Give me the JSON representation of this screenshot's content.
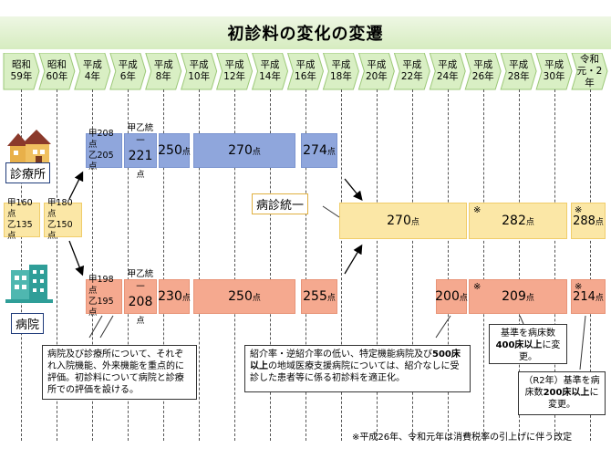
{
  "title": "初診料の変化の変遷",
  "eras": [
    {
      "l1": "昭和",
      "l2": "59年"
    },
    {
      "l1": "昭和",
      "l2": "60年"
    },
    {
      "l1": "平成",
      "l2": "4年"
    },
    {
      "l1": "平成",
      "l2": "6年"
    },
    {
      "l1": "平成",
      "l2": "8年"
    },
    {
      "l1": "平成",
      "l2": "10年"
    },
    {
      "l1": "平成",
      "l2": "12年"
    },
    {
      "l1": "平成",
      "l2": "14年"
    },
    {
      "l1": "平成",
      "l2": "16年"
    },
    {
      "l1": "平成",
      "l2": "18年"
    },
    {
      "l1": "平成",
      "l2": "20年"
    },
    {
      "l1": "平成",
      "l2": "22年"
    },
    {
      "l1": "平成",
      "l2": "24年"
    },
    {
      "l1": "平成",
      "l2": "26年"
    },
    {
      "l1": "平成",
      "l2": "28年"
    },
    {
      "l1": "平成",
      "l2": "30年"
    },
    {
      "l1": "令和",
      "l2": "元・2年"
    }
  ],
  "labels": {
    "clinic": "診療所",
    "hospital": "病院",
    "unified": "病診統一"
  },
  "shared": {
    "s59_a": "甲160点",
    "s59_b": "乙135点",
    "s60_a": "甲180点",
    "s60_b": "乙150点"
  },
  "clinic": {
    "h4_a": "甲208点",
    "h4_b": "乙205点",
    "h6_a": "甲乙統一",
    "h6_b": "221",
    "h8": "250",
    "h10": "270",
    "h16": "274"
  },
  "hospital": {
    "h4_a": "甲198点",
    "h4_b": "乙195点",
    "h6_a": "甲乙統一",
    "h6_b": "208",
    "h8": "230",
    "h10": "250",
    "h16": "255",
    "h24": "200",
    "h26": "209",
    "r1": "214"
  },
  "unified": {
    "h20": "270",
    "h26": "282",
    "r1": "288"
  },
  "unit": "点",
  "star": "※",
  "notes": {
    "n1": "病院及び診療所について、それぞれ入院機能、外来機能を重点的に評価。初診料について病院と診療所での評価を設ける。",
    "n2a": "紹介率・逆紹介率の低い、特定機能病院及び",
    "n2b": "500床以上",
    "n2c": "の地域医療支援病院については、紹介なしに受診した患者等に係る初診料を適正化。",
    "n3a": "基準を病床数",
    "n3b": "400床以上",
    "n3c": "に変更。",
    "n4a": "（R2年）基準を病床数",
    "n4b": "200床以上",
    "n4c": "に変更。",
    "footnote": "※平成26年、令和元年は消費税率の引上げに伴う改定"
  },
  "colors": {
    "clinic": "#8fa6dc",
    "unified": "#fbe7a6",
    "hospital": "#f5a98f",
    "header": "#d6ecc0"
  }
}
